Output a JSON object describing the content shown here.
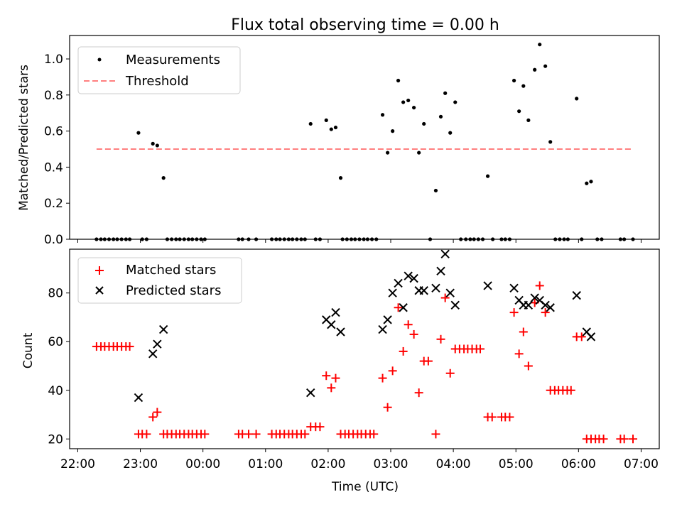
{
  "title": "Flux total observing time = 0.00 h",
  "colors": {
    "measurement": "#000000",
    "threshold": "#ff7f7f",
    "matched": "#ff0000",
    "predicted": "#000000"
  },
  "chart_data": [
    {
      "type": "scatter",
      "panel": "top",
      "ylabel": "Matched/Predicted stars",
      "xlim": [
        21.87,
        31.29
      ],
      "ylim": [
        0,
        1.13
      ],
      "yticks": [
        0.0,
        0.2,
        0.4,
        0.6,
        0.8,
        1.0
      ],
      "ytick_labels": [
        "0.0",
        "0.2",
        "0.4",
        "0.6",
        "0.8",
        "1.0"
      ],
      "legend": {
        "placement": "top-left",
        "entries": [
          "Measurements",
          "Threshold"
        ]
      },
      "threshold": {
        "name": "Threshold",
        "y": 0.5,
        "x": [
          22.3,
          30.87
        ]
      },
      "series": [
        {
          "name": "Measurements",
          "points": [
            [
              22.3,
              0
            ],
            [
              22.37,
              0
            ],
            [
              22.43,
              0
            ],
            [
              22.5,
              0
            ],
            [
              22.57,
              0
            ],
            [
              22.63,
              0
            ],
            [
              22.7,
              0
            ],
            [
              22.77,
              0
            ],
            [
              22.83,
              0
            ],
            [
              22.97,
              0.59
            ],
            [
              23.03,
              0
            ],
            [
              23.1,
              0
            ],
            [
              23.2,
              0.53
            ],
            [
              23.27,
              0.52
            ],
            [
              23.37,
              0.34
            ],
            [
              23.43,
              0
            ],
            [
              23.5,
              0
            ],
            [
              23.57,
              0
            ],
            [
              23.63,
              0
            ],
            [
              23.7,
              0
            ],
            [
              23.77,
              0
            ],
            [
              23.83,
              0
            ],
            [
              23.9,
              0
            ],
            [
              23.97,
              0
            ],
            [
              24.03,
              0
            ],
            [
              24.57,
              0
            ],
            [
              24.63,
              0
            ],
            [
              24.73,
              0
            ],
            [
              24.85,
              0
            ],
            [
              25.1,
              0
            ],
            [
              25.17,
              0
            ],
            [
              25.23,
              0
            ],
            [
              25.3,
              0
            ],
            [
              25.37,
              0
            ],
            [
              25.43,
              0
            ],
            [
              25.5,
              0
            ],
            [
              25.57,
              0
            ],
            [
              25.63,
              0
            ],
            [
              25.72,
              0.64
            ],
            [
              25.8,
              0
            ],
            [
              25.87,
              0
            ],
            [
              25.97,
              0.66
            ],
            [
              26.05,
              0.61
            ],
            [
              26.12,
              0.62
            ],
            [
              26.2,
              0.34
            ],
            [
              26.23,
              0
            ],
            [
              26.3,
              0
            ],
            [
              26.37,
              0
            ],
            [
              26.43,
              0
            ],
            [
              26.5,
              0
            ],
            [
              26.57,
              0
            ],
            [
              26.63,
              0
            ],
            [
              26.7,
              0
            ],
            [
              26.77,
              0
            ],
            [
              26.87,
              0.69
            ],
            [
              26.95,
              0.48
            ],
            [
              27.03,
              0.6
            ],
            [
              27.12,
              0.88
            ],
            [
              27.2,
              0.76
            ],
            [
              27.28,
              0.77
            ],
            [
              27.37,
              0.73
            ],
            [
              27.45,
              0.48
            ],
            [
              27.53,
              0.64
            ],
            [
              27.63,
              0
            ],
            [
              27.72,
              0.27
            ],
            [
              27.8,
              0.68
            ],
            [
              27.87,
              0.81
            ],
            [
              27.95,
              0.59
            ],
            [
              28.03,
              0.76
            ],
            [
              28.12,
              0
            ],
            [
              28.2,
              0
            ],
            [
              28.27,
              0
            ],
            [
              28.33,
              0
            ],
            [
              28.4,
              0
            ],
            [
              28.47,
              0
            ],
            [
              28.55,
              0.35
            ],
            [
              28.63,
              0
            ],
            [
              28.77,
              0
            ],
            [
              28.83,
              0
            ],
            [
              28.9,
              0
            ],
            [
              28.97,
              0.88
            ],
            [
              29.05,
              0.71
            ],
            [
              29.12,
              0.85
            ],
            [
              29.2,
              0.66
            ],
            [
              29.3,
              0.94
            ],
            [
              29.38,
              1.08
            ],
            [
              29.47,
              0.96
            ],
            [
              29.55,
              0.54
            ],
            [
              29.63,
              0
            ],
            [
              29.7,
              0
            ],
            [
              29.77,
              0
            ],
            [
              29.83,
              0
            ],
            [
              29.97,
              0.78
            ],
            [
              30.05,
              0
            ],
            [
              30.13,
              0.31
            ],
            [
              30.2,
              0.32
            ],
            [
              30.3,
              0
            ],
            [
              30.37,
              0
            ],
            [
              30.67,
              0
            ],
            [
              30.73,
              0
            ],
            [
              30.87,
              0
            ]
          ]
        }
      ]
    },
    {
      "type": "scatter",
      "panel": "bottom",
      "ylabel": "Count",
      "xlabel": "Time (UTC)",
      "xlim": [
        21.87,
        31.29
      ],
      "ylim": [
        16,
        98
      ],
      "yticks": [
        20,
        40,
        60,
        80
      ],
      "ytick_labels": [
        "20",
        "40",
        "60",
        "80"
      ],
      "xticks": [
        22,
        23,
        24,
        25,
        26,
        27,
        28,
        29,
        30,
        31
      ],
      "xtick_labels": [
        "22:00",
        "23:00",
        "00:00",
        "01:00",
        "02:00",
        "03:00",
        "04:00",
        "05:00",
        "06:00",
        "07:00"
      ],
      "legend": {
        "placement": "top-left",
        "entries": [
          "Matched stars",
          "Predicted stars"
        ]
      },
      "series": [
        {
          "name": "Matched stars",
          "marker": "plus",
          "points": [
            [
              22.3,
              58
            ],
            [
              22.37,
              58
            ],
            [
              22.43,
              58
            ],
            [
              22.5,
              58
            ],
            [
              22.57,
              58
            ],
            [
              22.63,
              58
            ],
            [
              22.7,
              58
            ],
            [
              22.77,
              58
            ],
            [
              22.83,
              58
            ],
            [
              22.97,
              22
            ],
            [
              23.03,
              22
            ],
            [
              23.1,
              22
            ],
            [
              23.2,
              29
            ],
            [
              23.27,
              31
            ],
            [
              23.37,
              22
            ],
            [
              23.43,
              22
            ],
            [
              23.5,
              22
            ],
            [
              23.57,
              22
            ],
            [
              23.63,
              22
            ],
            [
              23.7,
              22
            ],
            [
              23.77,
              22
            ],
            [
              23.83,
              22
            ],
            [
              23.9,
              22
            ],
            [
              23.97,
              22
            ],
            [
              24.03,
              22
            ],
            [
              24.57,
              22
            ],
            [
              24.63,
              22
            ],
            [
              24.73,
              22
            ],
            [
              24.85,
              22
            ],
            [
              25.1,
              22
            ],
            [
              25.17,
              22
            ],
            [
              25.23,
              22
            ],
            [
              25.3,
              22
            ],
            [
              25.37,
              22
            ],
            [
              25.43,
              22
            ],
            [
              25.5,
              22
            ],
            [
              25.57,
              22
            ],
            [
              25.63,
              22
            ],
            [
              25.72,
              25
            ],
            [
              25.8,
              25
            ],
            [
              25.87,
              25
            ],
            [
              25.97,
              46
            ],
            [
              26.05,
              41
            ],
            [
              26.12,
              45
            ],
            [
              26.2,
              22
            ],
            [
              26.27,
              22
            ],
            [
              26.33,
              22
            ],
            [
              26.4,
              22
            ],
            [
              26.47,
              22
            ],
            [
              26.53,
              22
            ],
            [
              26.6,
              22
            ],
            [
              26.67,
              22
            ],
            [
              26.73,
              22
            ],
            [
              26.87,
              45
            ],
            [
              26.95,
              33
            ],
            [
              27.03,
              48
            ],
            [
              27.12,
              74
            ],
            [
              27.2,
              56
            ],
            [
              27.28,
              67
            ],
            [
              27.37,
              63
            ],
            [
              27.45,
              39
            ],
            [
              27.53,
              52
            ],
            [
              27.6,
              52
            ],
            [
              27.72,
              22
            ],
            [
              27.8,
              61
            ],
            [
              27.87,
              78
            ],
            [
              27.95,
              47
            ],
            [
              28.03,
              57
            ],
            [
              28.1,
              57
            ],
            [
              28.17,
              57
            ],
            [
              28.23,
              57
            ],
            [
              28.3,
              57
            ],
            [
              28.37,
              57
            ],
            [
              28.43,
              57
            ],
            [
              28.55,
              29
            ],
            [
              28.62,
              29
            ],
            [
              28.77,
              29
            ],
            [
              28.83,
              29
            ],
            [
              28.9,
              29
            ],
            [
              28.97,
              72
            ],
            [
              29.05,
              55
            ],
            [
              29.12,
              64
            ],
            [
              29.2,
              50
            ],
            [
              29.3,
              76
            ],
            [
              29.38,
              83
            ],
            [
              29.47,
              72
            ],
            [
              29.55,
              40
            ],
            [
              29.62,
              40
            ],
            [
              29.68,
              40
            ],
            [
              29.75,
              40
            ],
            [
              29.82,
              40
            ],
            [
              29.88,
              40
            ],
            [
              29.97,
              62
            ],
            [
              30.05,
              62
            ],
            [
              30.13,
              20
            ],
            [
              30.2,
              20
            ],
            [
              30.27,
              20
            ],
            [
              30.33,
              20
            ],
            [
              30.4,
              20
            ],
            [
              30.67,
              20
            ],
            [
              30.73,
              20
            ],
            [
              30.87,
              20
            ]
          ]
        },
        {
          "name": "Predicted stars",
          "marker": "x",
          "points": [
            [
              22.97,
              37
            ],
            [
              23.2,
              55
            ],
            [
              23.27,
              59
            ],
            [
              23.37,
              65
            ],
            [
              25.72,
              39
            ],
            [
              25.97,
              69
            ],
            [
              26.05,
              67
            ],
            [
              26.12,
              72
            ],
            [
              26.2,
              64
            ],
            [
              26.87,
              65
            ],
            [
              26.95,
              69
            ],
            [
              27.03,
              80
            ],
            [
              27.12,
              84
            ],
            [
              27.2,
              74
            ],
            [
              27.28,
              87
            ],
            [
              27.37,
              86
            ],
            [
              27.45,
              81
            ],
            [
              27.53,
              81
            ],
            [
              27.72,
              82
            ],
            [
              27.8,
              89
            ],
            [
              27.87,
              96
            ],
            [
              27.95,
              80
            ],
            [
              28.03,
              75
            ],
            [
              28.55,
              83
            ],
            [
              28.97,
              82
            ],
            [
              29.05,
              77
            ],
            [
              29.12,
              75
            ],
            [
              29.2,
              75
            ],
            [
              29.3,
              78
            ],
            [
              29.38,
              77
            ],
            [
              29.47,
              75
            ],
            [
              29.55,
              74
            ],
            [
              29.97,
              79
            ],
            [
              30.13,
              64
            ],
            [
              30.2,
              62
            ]
          ]
        }
      ]
    }
  ]
}
